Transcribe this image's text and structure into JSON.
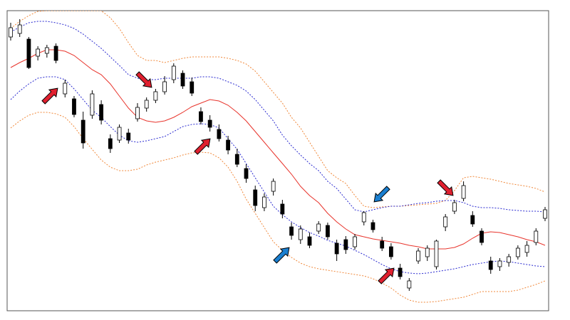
{
  "chart_data": {
    "type": "candlestick",
    "categories": [
      null,
      null,
      null,
      null,
      null,
      null,
      null,
      null,
      null,
      null,
      null,
      null,
      null,
      null,
      null,
      null,
      null,
      null,
      null,
      null,
      null,
      null,
      null,
      null,
      null,
      null,
      null,
      null,
      null,
      null,
      null,
      null,
      null,
      null,
      null,
      null,
      null,
      null,
      null,
      null,
      null,
      null,
      null,
      null,
      null,
      null,
      null,
      null,
      null,
      null,
      null,
      null,
      null,
      null,
      null,
      null,
      null,
      null,
      null,
      null
    ],
    "open": [
      385,
      390,
      382,
      358,
      362,
      372,
      305,
      298,
      268,
      275,
      290,
      242,
      240,
      250,
      270,
      285,
      296,
      308,
      325,
      334,
      322,
      280,
      268,
      255,
      240,
      220,
      200,
      170,
      145,
      168,
      150,
      118,
      100,
      104,
      112,
      120,
      95,
      100,
      90,
      125,
      124,
      98,
      90,
      60,
      32,
      70,
      76,
      62,
      118,
      140,
      158,
      134,
      112,
      70,
      62,
      68,
      76,
      82,
      96,
      130
    ],
    "high": [
      405,
      410,
      385,
      372,
      374,
      376,
      325,
      302,
      280,
      310,
      296,
      248,
      262,
      256,
      292,
      300,
      312,
      330,
      348,
      338,
      328,
      286,
      275,
      262,
      246,
      228,
      206,
      176,
      165,
      186,
      156,
      124,
      120,
      110,
      126,
      124,
      100,
      105,
      108,
      140,
      128,
      104,
      95,
      66,
      46,
      88,
      92,
      100,
      136,
      156,
      182,
      140,
      116,
      76,
      74,
      80,
      92,
      98,
      116,
      146
    ],
    "low": [
      380,
      385,
      340,
      352,
      356,
      348,
      300,
      272,
      228,
      270,
      262,
      222,
      236,
      235,
      266,
      280,
      292,
      304,
      320,
      312,
      302,
      262,
      252,
      238,
      220,
      202,
      180,
      140,
      140,
      162,
      130,
      100,
      94,
      88,
      108,
      100,
      70,
      80,
      86,
      120,
      110,
      84,
      72,
      44,
      28,
      66,
      70,
      58,
      112,
      136,
      154,
      118,
      92,
      52,
      56,
      62,
      72,
      76,
      92,
      126
    ],
    "close": [
      398,
      402,
      342,
      368,
      370,
      352,
      320,
      276,
      236,
      305,
      268,
      228,
      258,
      240,
      286,
      296,
      308,
      322,
      344,
      316,
      306,
      266,
      258,
      242,
      226,
      206,
      186,
      148,
      160,
      182,
      136,
      106,
      115,
      92,
      122,
      104,
      80,
      86,
      104,
      138,
      114,
      88,
      76,
      48,
      42,
      84,
      88,
      98,
      132,
      152,
      176,
      122,
      96,
      58,
      70,
      76,
      88,
      92,
      112,
      142
    ],
    "up_color": "#ffffff",
    "down_color": "#000000",
    "outline_color": "#000000",
    "lines": [
      {
        "color": "#f0883a",
        "style": "dotted",
        "values": [
          397,
          407,
          415,
          421,
          422,
          422,
          422,
          422,
          422,
          422,
          422,
          412,
          397,
          377,
          359,
          352,
          352,
          349,
          352,
          355,
          357,
          357,
          357,
          357,
          355,
          352,
          347,
          337,
          322,
          307,
          292,
          272,
          257,
          237,
          217,
          197,
          187,
          179,
          162,
          147,
          145,
          146,
          147,
          147,
          148,
          149,
          150,
          151,
          155,
          169,
          187,
          189,
          187,
          185,
          182,
          179,
          177,
          175,
          172,
          167
        ]
      },
      {
        "color": "#2a2ad0",
        "style": "dotted",
        "values": [
          392,
          399,
          405,
          407,
          407,
          405,
          402,
          397,
          389,
          379,
          369,
          357,
          345,
          332,
          327,
          325,
          325,
          327,
          327,
          327,
          327,
          329,
          329,
          327,
          322,
          317,
          309,
          297,
          282,
          267,
          247,
          232,
          219,
          207,
          197,
          182,
          172,
          157,
          142,
          139,
          142,
          145,
          147,
          147,
          149,
          151,
          152,
          154,
          155,
          155,
          152,
          147,
          145,
          145,
          144,
          142,
          141,
          140,
          140,
          139
        ]
      },
      {
        "color": "#e8342c",
        "style": "solid",
        "values": [
          342,
          349,
          355,
          362,
          367,
          367,
          365,
          359,
          349,
          339,
          332,
          319,
          302,
          285,
          272,
          267,
          265,
          267,
          272,
          279,
          287,
          292,
          297,
          295,
          289,
          279,
          267,
          252,
          237,
          222,
          207,
          192,
          175,
          162,
          152,
          137,
          125,
          115,
          107,
          104,
          101,
          99,
          97,
          95,
          92,
          90,
          87,
          87,
          87,
          89,
          94,
          102,
          109,
          111,
          110,
          107,
          104,
          100,
          97,
          92
        ]
      },
      {
        "color": "#2a2ad0",
        "style": "dotted",
        "values": [
          297,
          309,
          319,
          327,
          329,
          329,
          325,
          312,
          297,
          282,
          272,
          259,
          247,
          239,
          237,
          239,
          242,
          245,
          252,
          259,
          262,
          263,
          262,
          257,
          242,
          227,
          207,
          187,
          167,
          147,
          135,
          125,
          117,
          110,
          105,
          99,
          95,
          91,
          85,
          79,
          72,
          65,
          59,
          55,
          53,
          52,
          53,
          55,
          57,
          59,
          62,
          65,
          67,
          69,
          70,
          69,
          67,
          65,
          63,
          62
        ]
      },
      {
        "color": "#f0883a",
        "style": "dotted",
        "values": [
          257,
          267,
          275,
          279,
          279,
          277,
          272,
          259,
          242,
          227,
          212,
          202,
          197,
          197,
          199,
          205,
          209,
          212,
          215,
          219,
          222,
          223,
          222,
          215,
          202,
          182,
          157,
          137,
          117,
          97,
          85,
          75,
          67,
          62,
          59,
          57,
          55,
          53,
          51,
          49,
          45,
          39,
          32,
          22,
          15,
          12,
          12,
          13,
          15,
          17,
          19,
          23,
          27,
          27,
          27,
          27,
          29,
          33,
          37,
          42
        ]
      }
    ],
    "ylim": [
      0,
      422
    ]
  }
}
